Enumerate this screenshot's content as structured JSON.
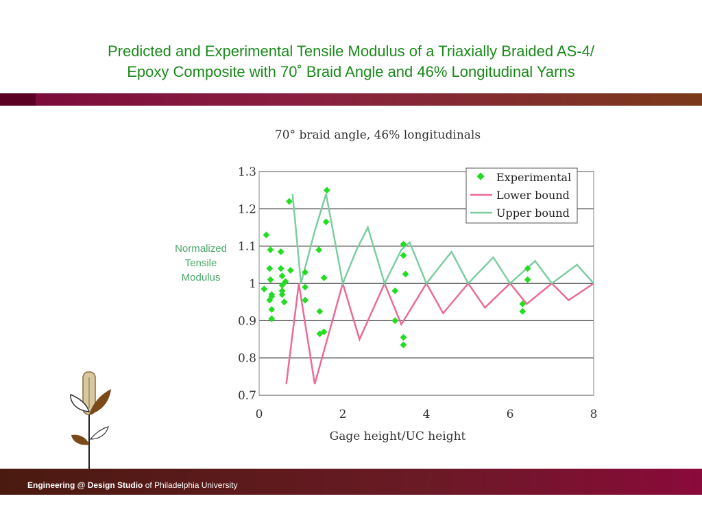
{
  "slide": {
    "title_line1": "Predicted and Experimental Tensile Modulus of a Triaxially Braided AS-4/",
    "title_line2": "Epoxy Composite with 70˚   Braid Angle and 46% Longitudinal Yarns",
    "footer_bold": "Engineering @ Design Studio",
    "footer_rest": " of Philadelphia University",
    "ylabel_lines": [
      "Normalized",
      "Tensile",
      "Modulus"
    ]
  },
  "colors": {
    "experimental": "#22dd22",
    "lower_bound": "#ec6a96",
    "upper_bound": "#7ccea0",
    "title_green": "#1a8a1a",
    "band_maroon": "#7a0a3a"
  },
  "chart_data": {
    "type": "line",
    "title": "70° braid angle, 46% longitudinals",
    "xlabel": "Gage height/UC height",
    "ylabel": "Normalized Tensile Modulus",
    "xlim": [
      0,
      8
    ],
    "ylim": [
      0.7,
      1.3
    ],
    "xticks": [
      "0",
      "2",
      "4",
      "6",
      "8"
    ],
    "yticks": [
      "0.7",
      "0.8",
      "0.9",
      "1",
      "1.1",
      "1.2",
      "1.3"
    ],
    "grid": "horizontal",
    "legend": "top-right",
    "series": [
      {
        "name": "Experimental",
        "kind": "scatter",
        "points": [
          [
            0.12,
            0.985
          ],
          [
            0.17,
            1.13
          ],
          [
            0.25,
            1.04
          ],
          [
            0.27,
            1.09
          ],
          [
            0.27,
            1.01
          ],
          [
            0.25,
            0.955
          ],
          [
            0.3,
            0.97
          ],
          [
            0.3,
            0.965
          ],
          [
            0.3,
            0.93
          ],
          [
            0.3,
            0.905
          ],
          [
            0.52,
            1.085
          ],
          [
            0.52,
            1.04
          ],
          [
            0.55,
            1.02
          ],
          [
            0.55,
            0.995
          ],
          [
            0.55,
            0.98
          ],
          [
            0.55,
            0.97
          ],
          [
            0.6,
            0.95
          ],
          [
            0.63,
            1.005
          ],
          [
            0.72,
            1.22
          ],
          [
            0.75,
            1.035
          ],
          [
            1.1,
            1.03
          ],
          [
            1.1,
            0.99
          ],
          [
            1.1,
            0.955
          ],
          [
            1.43,
            1.09
          ],
          [
            1.45,
            0.925
          ],
          [
            1.45,
            0.865
          ],
          [
            1.55,
            1.015
          ],
          [
            1.55,
            0.87
          ],
          [
            1.6,
            1.165
          ],
          [
            1.62,
            1.25
          ],
          [
            3.25,
            0.98
          ],
          [
            3.25,
            0.9
          ],
          [
            3.45,
            1.105
          ],
          [
            3.45,
            1.075
          ],
          [
            3.5,
            1.025
          ],
          [
            3.45,
            0.855
          ],
          [
            3.45,
            0.835
          ],
          [
            6.3,
            0.945
          ],
          [
            6.3,
            0.925
          ],
          [
            6.42,
            1.04
          ],
          [
            6.42,
            1.01
          ]
        ]
      },
      {
        "name": "Lower bound",
        "kind": "line",
        "points": [
          [
            0.65,
            0.73
          ],
          [
            0.95,
            1.0
          ],
          [
            1.33,
            0.73
          ],
          [
            2.0,
            1.0
          ],
          [
            2.4,
            0.85
          ],
          [
            3.0,
            1.0
          ],
          [
            3.4,
            0.89
          ],
          [
            4.0,
            1.0
          ],
          [
            4.4,
            0.92
          ],
          [
            5.0,
            1.0
          ],
          [
            5.4,
            0.935
          ],
          [
            6.0,
            1.0
          ],
          [
            6.4,
            0.945
          ],
          [
            7.0,
            1.0
          ],
          [
            7.4,
            0.955
          ],
          [
            8.0,
            1.0
          ]
        ]
      },
      {
        "name": "Upper bound",
        "kind": "line",
        "points": [
          [
            0.8,
            1.24
          ],
          [
            1.0,
            1.0
          ],
          [
            1.33,
            1.14
          ],
          [
            1.6,
            1.24
          ],
          [
            2.0,
            1.0
          ],
          [
            2.33,
            1.09
          ],
          [
            2.6,
            1.15
          ],
          [
            3.0,
            1.0
          ],
          [
            3.4,
            1.09
          ],
          [
            3.6,
            1.11
          ],
          [
            4.0,
            1.0
          ],
          [
            4.6,
            1.085
          ],
          [
            5.0,
            1.0
          ],
          [
            5.6,
            1.07
          ],
          [
            6.0,
            1.0
          ],
          [
            6.6,
            1.06
          ],
          [
            7.0,
            1.0
          ],
          [
            7.6,
            1.05
          ],
          [
            8.0,
            1.0
          ]
        ]
      }
    ]
  }
}
